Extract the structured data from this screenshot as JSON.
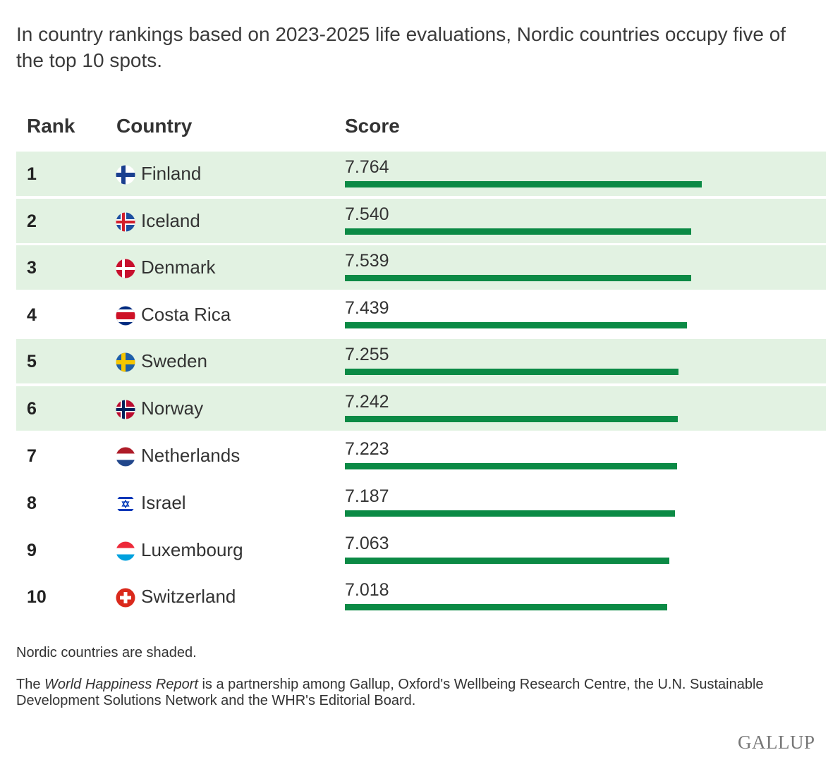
{
  "title": "In country rankings based on 2023-2025 life evaluations, Nordic countries occupy five of the top 10 spots.",
  "headers": {
    "rank": "Rank",
    "country": "Country",
    "score": "Score"
  },
  "chart_data": {
    "type": "bar",
    "orientation": "horizontal",
    "title": "In country rankings based on 2023-2025 life evaluations, Nordic countries occupy five of the top 10 spots.",
    "columns": [
      "Rank",
      "Country",
      "Score"
    ],
    "bar_color": "#0b8a45",
    "shade_color": "#e2f2e2",
    "value_max": 7.764,
    "rows": [
      {
        "rank": "1",
        "country": "Finland",
        "score": "7.764",
        "value": 7.764,
        "nordic": true,
        "flag": "finland-flag"
      },
      {
        "rank": "2",
        "country": "Iceland",
        "score": "7.540",
        "value": 7.54,
        "nordic": true,
        "flag": "iceland-flag"
      },
      {
        "rank": "3",
        "country": "Denmark",
        "score": "7.539",
        "value": 7.539,
        "nordic": true,
        "flag": "denmark-flag"
      },
      {
        "rank": "4",
        "country": "Costa Rica",
        "score": "7.439",
        "value": 7.439,
        "nordic": false,
        "flag": "costa-rica-flag"
      },
      {
        "rank": "5",
        "country": "Sweden",
        "score": "7.255",
        "value": 7.255,
        "nordic": true,
        "flag": "sweden-flag"
      },
      {
        "rank": "6",
        "country": "Norway",
        "score": "7.242",
        "value": 7.242,
        "nordic": true,
        "flag": "norway-flag"
      },
      {
        "rank": "7",
        "country": "Netherlands",
        "score": "7.223",
        "value": 7.223,
        "nordic": false,
        "flag": "netherlands-flag"
      },
      {
        "rank": "8",
        "country": "Israel",
        "score": "7.187",
        "value": 7.187,
        "nordic": false,
        "flag": "israel-flag"
      },
      {
        "rank": "9",
        "country": "Luxembourg",
        "score": "7.063",
        "value": 7.063,
        "nordic": false,
        "flag": "luxembourg-flag"
      },
      {
        "rank": "10",
        "country": "Switzerland",
        "score": "7.018",
        "value": 7.018,
        "nordic": false,
        "flag": "switzerland-flag"
      }
    ]
  },
  "note": "Nordic countries are shaded.",
  "credit": {
    "prefix": "The ",
    "report": "World Happiness Report",
    "suffix": " is a partnership among Gallup, Oxford's Wellbeing Research Centre, the U.N. Sustainable Development Solutions Network and the WHR's Editorial Board."
  },
  "logo": "GALLUP"
}
